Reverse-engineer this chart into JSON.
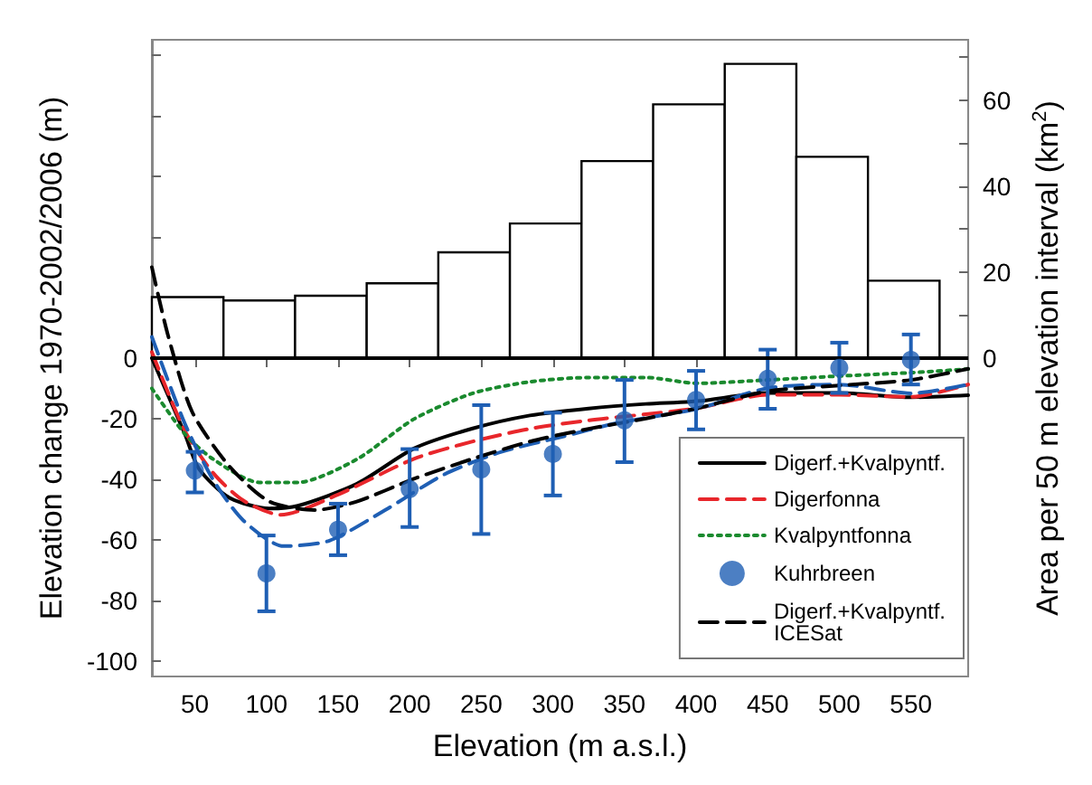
{
  "chart_data": {
    "type": "line",
    "xlabel": "Elevation (m a.s.l.)",
    "ylabel": "Elevation change 1970-2002/2006 (m)",
    "y2label": "Area per 50 m elevation interval (km$^{2}$)",
    "xlim": [
      20,
      590
    ],
    "xticks": [
      50,
      100,
      150,
      200,
      250,
      300,
      350,
      400,
      450,
      500,
      550
    ],
    "ylim": [
      -105,
      105
    ],
    "yticks": [
      -100,
      -80,
      -60,
      -40,
      -20,
      0,
      {
        "value": 20,
        "label": null
      },
      {
        "value": 40,
        "label": null
      },
      {
        "value": 60,
        "label": null
      },
      {
        "value": 80,
        "label": null
      },
      {
        "value": 100,
        "label": null
      }
    ],
    "y2lim": [
      -74,
      74
    ],
    "y2ticks": [
      0,
      {
        "value": 10,
        "label": null
      },
      20,
      {
        "value": 30,
        "label": null
      },
      40,
      {
        "value": 50,
        "label": null
      },
      60,
      {
        "value": 70,
        "label": null
      }
    ],
    "grid": false,
    "legend": "bottom right",
    "ref_lines": [
      {
        "axis": "y",
        "value": 0,
        "color": "#000000"
      }
    ],
    "series": [
      {
        "type": "histogram",
        "axis": "y2",
        "color": "#000000",
        "bins": [
          20,
          70,
          120,
          170,
          220,
          270,
          320,
          370,
          420,
          470,
          520,
          570
        ],
        "values": [
          14.2,
          13.4,
          14.5,
          17.4,
          24.6,
          31.3,
          45.8,
          59,
          68.4,
          46.8,
          18
        ]
      },
      {
        "name": "Digerf.+Kvalpyntf.",
        "color": "#000000",
        "line_style": "solid",
        "x": [
          20,
          43,
          53,
          74,
          102,
          122,
          163,
          203,
          244,
          284,
          325,
          365,
          401,
          450,
          500,
          550,
          590
        ],
        "values": [
          0,
          -25,
          -36.6,
          -46,
          -49.6,
          -48.7,
          -41.5,
          -29.8,
          -23.2,
          -18.9,
          -16.6,
          -15.1,
          -14.2,
          -11.5,
          -11.5,
          -12.9,
          -12.2
        ]
      },
      {
        "name": "Digerfonna",
        "color": "#e8262b",
        "line_style": "dashed",
        "x": [
          20,
          43,
          63,
          84,
          110,
          150,
          203,
          244,
          284,
          325,
          365,
          401,
          450,
          500,
          550,
          590
        ],
        "values": [
          2,
          -24,
          -38,
          -47,
          -51.7,
          -45,
          -33.2,
          -27.5,
          -23.3,
          -20.5,
          -18.5,
          -16.5,
          -12.1,
          -12.1,
          -12.8,
          -8.7
        ]
      },
      {
        "name": "Kvalpyntfonna",
        "color": "#1a8a2e",
        "line_style": "dotted",
        "x": [
          20,
          43,
          63,
          95,
          122,
          163,
          203,
          244,
          284,
          325,
          365,
          401,
          450,
          500,
          550,
          590
        ],
        "values": [
          -10,
          -25,
          -33.4,
          -41,
          -41,
          -33.4,
          -20.1,
          -11.6,
          -7.8,
          -6.4,
          -6.4,
          -8.3,
          -7.2,
          -5.9,
          -4.8,
          -3.6
        ]
      },
      {
        "name": "Kuhrbreen",
        "type": "scatter",
        "color": "#1f5fb4",
        "marker": "circle",
        "x": [
          50,
          100,
          150,
          200,
          250,
          300,
          350,
          400,
          450,
          500,
          550
        ],
        "values": [
          -37.1,
          -71,
          -56.6,
          -43.2,
          -36.7,
          -31.6,
          -20.5,
          -13.8,
          -6.8,
          -3.2,
          -0.6
        ],
        "errors": [
          [
            -44.3,
            -30.9
          ],
          [
            -83.5,
            -58.5
          ],
          [
            -65,
            -48
          ],
          [
            -55.7,
            -30
          ],
          [
            -58,
            -15.5
          ],
          [
            -45.3,
            -18
          ],
          [
            -34.3,
            -7.2
          ],
          [
            -23.5,
            -4.2
          ],
          [
            -16.7,
            2.8
          ],
          [
            -11.5,
            5.1
          ],
          [
            -8.7,
            7.8
          ]
        ]
      },
      {
        "color": "#1f5fb4",
        "line_style": "dashed",
        "x": [
          20,
          43,
          63,
          84,
          112,
          144,
          184,
          224,
          264,
          305,
          345,
          401,
          450,
          500,
          550,
          590
        ],
        "values": [
          7,
          -21.6,
          -40.3,
          -53.6,
          -62,
          -60.2,
          -49.8,
          -38.4,
          -30.9,
          -26.1,
          -21.4,
          -16.7,
          -9.9,
          -8.7,
          -11.6,
          -8.7
        ]
      },
      {
        "name": "Digerf.+Kvalpyntf.\nICESat",
        "color": "#000000",
        "line_style": "dashed",
        "x": [
          20,
          31,
          48,
          74,
          102,
          134,
          163,
          203,
          244,
          284,
          325,
          365,
          401,
          450,
          500,
          550,
          590
        ],
        "values": [
          30,
          8,
          -17.6,
          -35.6,
          -47.3,
          -50.1,
          -47.3,
          -39.8,
          -33.2,
          -27.5,
          -23.3,
          -19.9,
          -16.5,
          -10.9,
          -9,
          -7.2,
          -3.5
        ]
      }
    ]
  }
}
